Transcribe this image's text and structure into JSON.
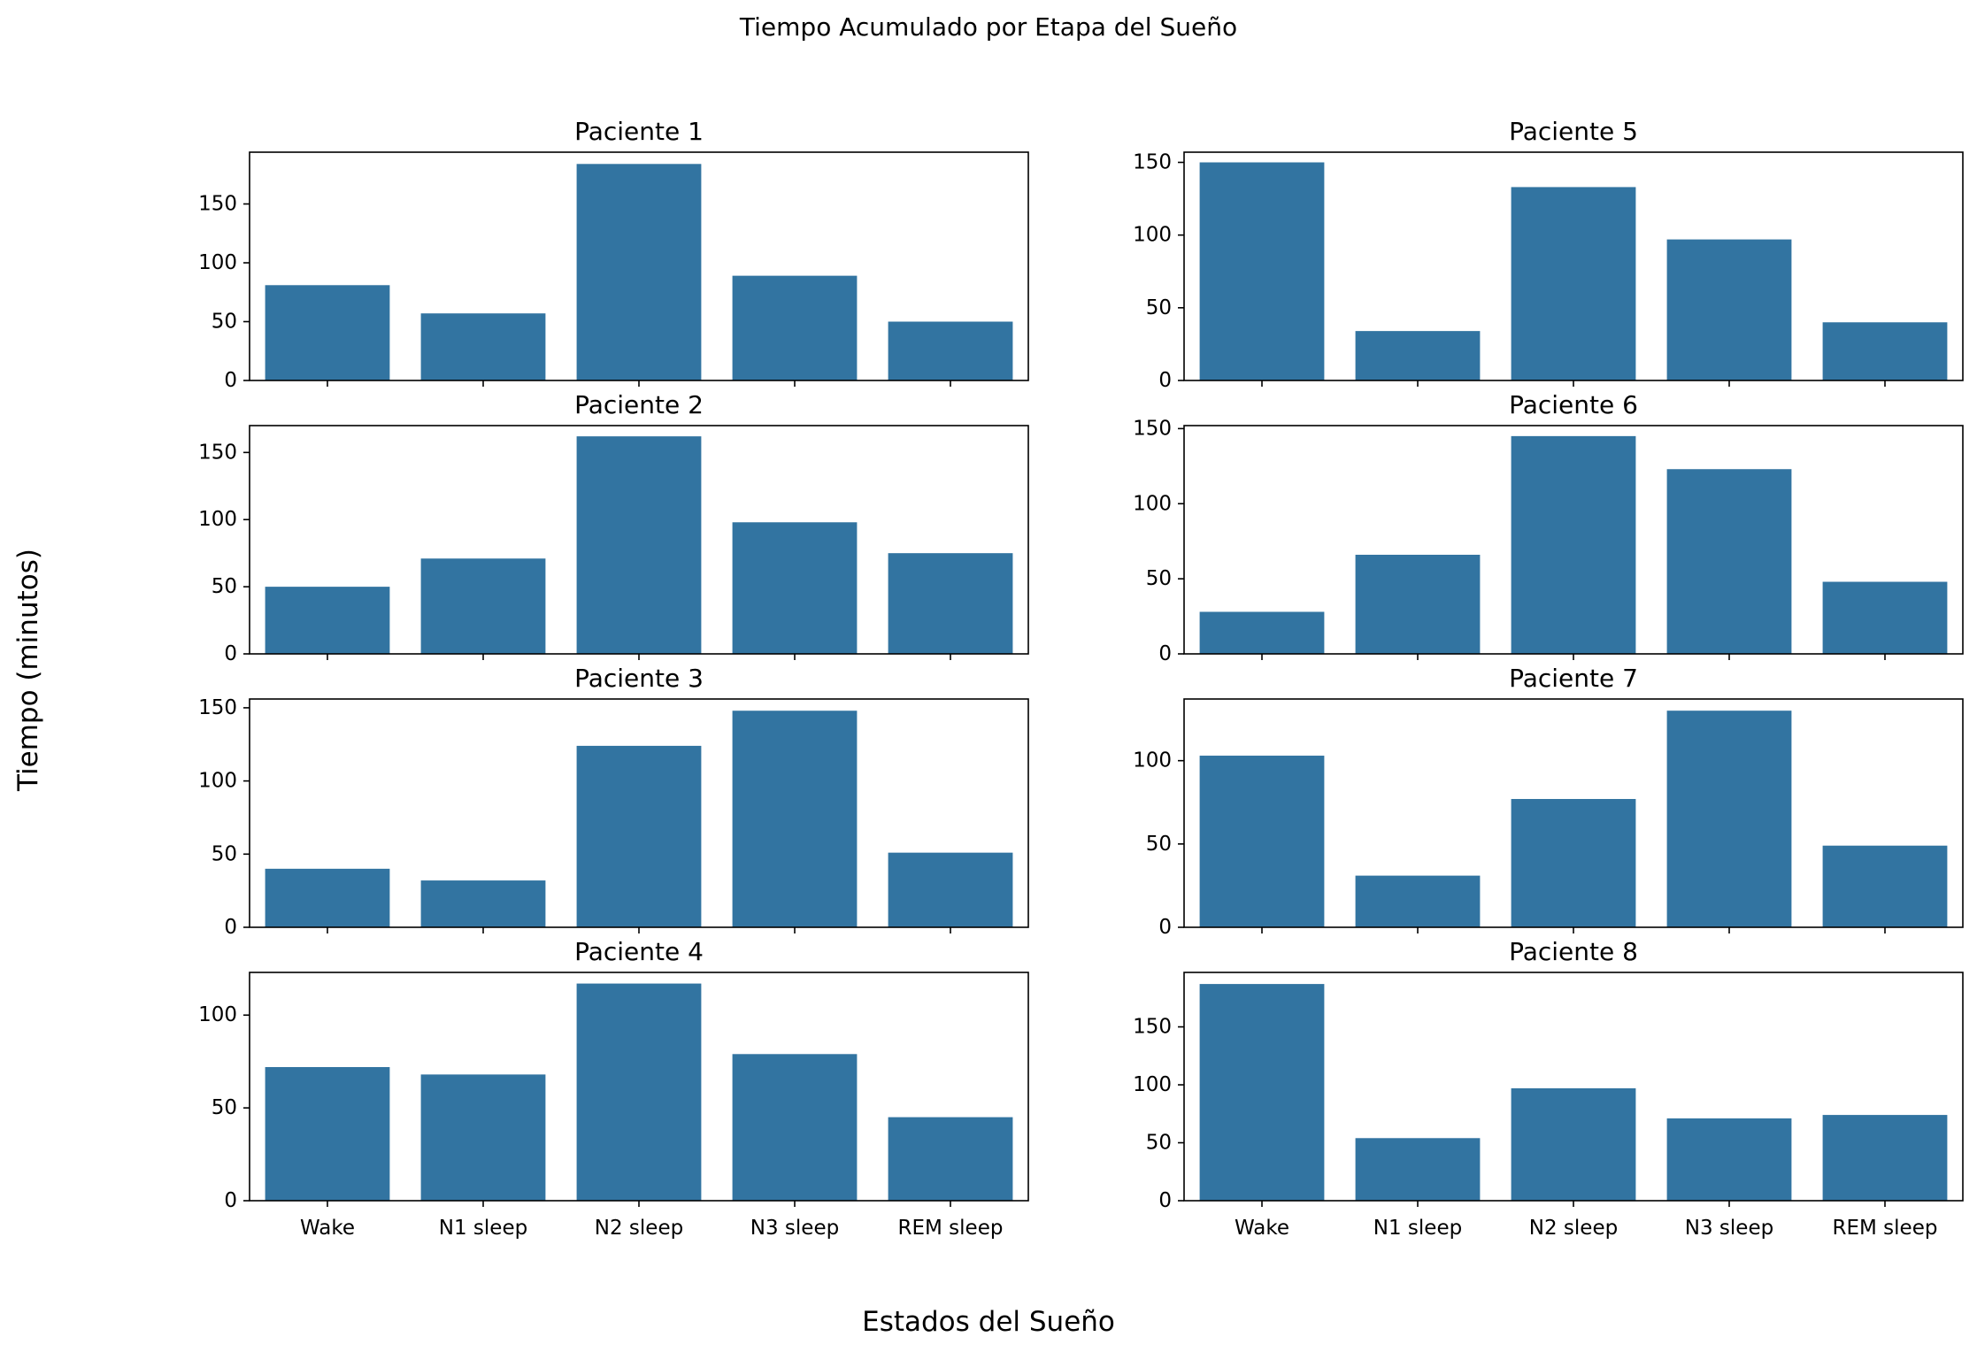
{
  "figure": {
    "title": "Tiempo Acumulado por Etapa del Sueño",
    "xlabel": "Estados del Sueño",
    "ylabel": "Tiempo (minutos)",
    "bar_color": "#3274a1"
  },
  "chart_data": [
    {
      "type": "bar",
      "title": "Paciente 1",
      "categories": [
        "Wake",
        "N1 sleep",
        "N2 sleep",
        "N3 sleep",
        "REM sleep"
      ],
      "values": [
        81,
        57,
        184,
        89,
        50
      ],
      "ylim": [
        0,
        194
      ],
      "yticks": [
        0,
        50,
        100,
        150
      ]
    },
    {
      "type": "bar",
      "title": "Paciente 2",
      "categories": [
        "Wake",
        "N1 sleep",
        "N2 sleep",
        "N3 sleep",
        "REM sleep"
      ],
      "values": [
        50,
        71,
        162,
        98,
        75
      ],
      "ylim": [
        0,
        170
      ],
      "yticks": [
        0,
        50,
        100,
        150
      ]
    },
    {
      "type": "bar",
      "title": "Paciente 3",
      "categories": [
        "Wake",
        "N1 sleep",
        "N2 sleep",
        "N3 sleep",
        "REM sleep"
      ],
      "values": [
        40,
        32,
        124,
        148,
        51
      ],
      "ylim": [
        0,
        156
      ],
      "yticks": [
        0,
        50,
        100,
        150
      ]
    },
    {
      "type": "bar",
      "title": "Paciente 4",
      "categories": [
        "Wake",
        "N1 sleep",
        "N2 sleep",
        "N3 sleep",
        "REM sleep"
      ],
      "values": [
        72,
        68,
        117,
        79,
        45
      ],
      "ylim": [
        0,
        123
      ],
      "yticks": [
        0,
        50,
        100
      ]
    },
    {
      "type": "bar",
      "title": "Paciente 5",
      "categories": [
        "Wake",
        "N1 sleep",
        "N2 sleep",
        "N3 sleep",
        "REM sleep"
      ],
      "values": [
        150,
        34,
        133,
        97,
        40
      ],
      "ylim": [
        0,
        157
      ],
      "yticks": [
        0,
        50,
        100,
        150
      ]
    },
    {
      "type": "bar",
      "title": "Paciente 6",
      "categories": [
        "Wake",
        "N1 sleep",
        "N2 sleep",
        "N3 sleep",
        "REM sleep"
      ],
      "values": [
        28,
        66,
        145,
        123,
        48
      ],
      "ylim": [
        0,
        152
      ],
      "yticks": [
        0,
        50,
        100,
        150
      ]
    },
    {
      "type": "bar",
      "title": "Paciente 7",
      "categories": [
        "Wake",
        "N1 sleep",
        "N2 sleep",
        "N3 sleep",
        "REM sleep"
      ],
      "values": [
        103,
        31,
        77,
        130,
        49
      ],
      "ylim": [
        0,
        137
      ],
      "yticks": [
        0,
        50,
        100
      ]
    },
    {
      "type": "bar",
      "title": "Paciente 8",
      "categories": [
        "Wake",
        "N1 sleep",
        "N2 sleep",
        "N3 sleep",
        "REM sleep"
      ],
      "values": [
        187,
        54,
        97,
        71,
        74
      ],
      "ylim": [
        0,
        197
      ],
      "yticks": [
        0,
        50,
        100,
        150
      ]
    }
  ]
}
